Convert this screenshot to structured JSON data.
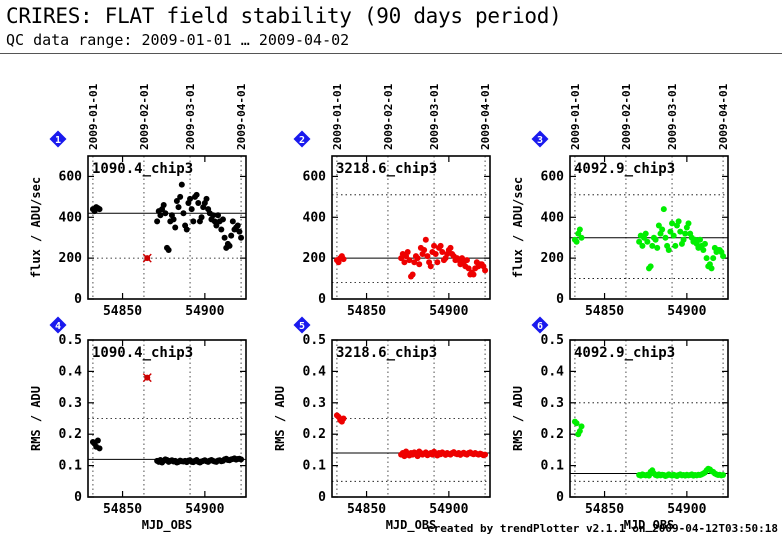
{
  "header": {
    "title": "CRIRES: FLAT field stability (90 days period)",
    "subtitle": "QC data range: 2009-01-01 … 2009-04-02",
    "credit": "created by trendPlotter v2.1.1 on 2009-04-12T03:50:18"
  },
  "colors": {
    "chip_1090": "#000000",
    "chip_3218": "#ee0000",
    "chip_4092": "#00ee00",
    "outlier_marker": "#cc0000",
    "panel_badge": "#1a1aee"
  },
  "chart_data": [
    {
      "type": "scatter",
      "panel": "1",
      "label": "1090.4_chip3",
      "color": "#000000",
      "xlabel": "",
      "ylabel": "flux / ADU/sec",
      "xlim": [
        54829,
        54925
      ],
      "ylim": [
        0,
        700
      ],
      "xticks": [
        54850,
        54900
      ],
      "yticks": [
        0,
        200,
        400,
        600
      ],
      "top_ticks": [
        "2009-01-01",
        "2009-02-01",
        "2009-03-01",
        "2009-04-01"
      ],
      "top_tick_mjd": [
        54832,
        54863,
        54891,
        54922
      ],
      "reference_line": 420,
      "limit_lines": [
        200
      ],
      "outliers": [
        {
          "x": 54865,
          "y": 200
        }
      ],
      "x": [
        54832,
        54833,
        54834,
        54835,
        54836,
        54871,
        54872,
        54873,
        54874,
        54875,
        54876,
        54877,
        54878,
        54879,
        54880,
        54881,
        54882,
        54883,
        54884,
        54885,
        54886,
        54887,
        54888,
        54889,
        54890,
        54891,
        54892,
        54893,
        54894,
        54895,
        54896,
        54897,
        54898,
        54899,
        54900,
        54901,
        54902,
        54903,
        54904,
        54905,
        54906,
        54907,
        54908,
        54909,
        54910,
        54911,
        54912,
        54913,
        54914,
        54915,
        54916,
        54917,
        54918,
        54919,
        54920,
        54921,
        54922
      ],
      "y": [
        440,
        430,
        450,
        445,
        440,
        380,
        430,
        410,
        440,
        460,
        420,
        250,
        240,
        380,
        410,
        390,
        350,
        480,
        450,
        500,
        560,
        420,
        360,
        340,
        470,
        490,
        440,
        380,
        500,
        510,
        470,
        380,
        400,
        450,
        470,
        490,
        440,
        420,
        390,
        410,
        380,
        360,
        410,
        380,
        340,
        390,
        300,
        250,
        270,
        260,
        310,
        380,
        340,
        350,
        360,
        330,
        300
      ]
    },
    {
      "type": "scatter",
      "panel": "2",
      "label": "3218.6_chip3",
      "color": "#ee0000",
      "xlabel": "",
      "ylabel": "",
      "xlim": [
        54829,
        54925
      ],
      "ylim": [
        0,
        700
      ],
      "xticks": [
        54850,
        54900
      ],
      "yticks": [
        0,
        200,
        400,
        600
      ],
      "top_ticks": [
        "2009-01-01",
        "2009-02-01",
        "2009-03-01",
        "2009-04-01"
      ],
      "top_tick_mjd": [
        54832,
        54863,
        54891,
        54922
      ],
      "reference_line": 200,
      "limit_lines": [
        80,
        510
      ],
      "outliers": [],
      "x": [
        54832,
        54833,
        54834,
        54835,
        54836,
        54871,
        54872,
        54873,
        54874,
        54875,
        54876,
        54877,
        54878,
        54879,
        54880,
        54881,
        54882,
        54883,
        54884,
        54885,
        54886,
        54887,
        54888,
        54889,
        54890,
        54891,
        54892,
        54893,
        54894,
        54895,
        54896,
        54897,
        54898,
        54899,
        54900,
        54901,
        54902,
        54903,
        54904,
        54905,
        54906,
        54907,
        54908,
        54909,
        54910,
        54911,
        54912,
        54913,
        54914,
        54915,
        54916,
        54917,
        54918,
        54919,
        54920,
        54921,
        54922
      ],
      "y": [
        190,
        180,
        200,
        210,
        195,
        200,
        220,
        180,
        210,
        230,
        190,
        110,
        120,
        180,
        210,
        200,
        170,
        250,
        220,
        240,
        290,
        210,
        180,
        160,
        230,
        260,
        220,
        180,
        250,
        260,
        230,
        190,
        200,
        220,
        240,
        250,
        220,
        210,
        190,
        200,
        190,
        170,
        200,
        180,
        160,
        190,
        150,
        120,
        130,
        120,
        150,
        180,
        160,
        170,
        170,
        160,
        140
      ]
    },
    {
      "type": "scatter",
      "panel": "3",
      "label": "4092.9_chip3",
      "color": "#00ee00",
      "xlabel": "",
      "ylabel": "flux / ADU/sec",
      "xlim": [
        54829,
        54925
      ],
      "ylim": [
        0,
        700
      ],
      "xticks": [
        54850,
        54900
      ],
      "yticks": [
        0,
        200,
        400,
        600
      ],
      "top_ticks": [
        "2009-01-01",
        "2009-02-01",
        "2009-03-01",
        "2009-04-01"
      ],
      "top_tick_mjd": [
        54832,
        54863,
        54891,
        54922
      ],
      "reference_line": 300,
      "limit_lines": [
        100,
        510
      ],
      "outliers": [],
      "x": [
        54832,
        54833,
        54834,
        54835,
        54836,
        54871,
        54872,
        54873,
        54874,
        54875,
        54876,
        54877,
        54878,
        54879,
        54880,
        54881,
        54882,
        54883,
        54884,
        54885,
        54886,
        54887,
        54888,
        54889,
        54890,
        54891,
        54892,
        54893,
        54894,
        54895,
        54896,
        54897,
        54898,
        54899,
        54900,
        54901,
        54902,
        54903,
        54904,
        54905,
        54906,
        54907,
        54908,
        54909,
        54910,
        54911,
        54912,
        54913,
        54914,
        54915,
        54916,
        54917,
        54918,
        54919,
        54920,
        54921,
        54922
      ],
      "y": [
        290,
        280,
        320,
        340,
        300,
        280,
        310,
        260,
        300,
        320,
        280,
        150,
        160,
        260,
        300,
        290,
        250,
        360,
        320,
        340,
        440,
        300,
        260,
        240,
        330,
        370,
        310,
        260,
        360,
        380,
        330,
        270,
        290,
        320,
        350,
        370,
        320,
        300,
        280,
        290,
        270,
        250,
        290,
        260,
        240,
        270,
        200,
        160,
        170,
        150,
        200,
        250,
        230,
        240,
        240,
        230,
        210
      ]
    },
    {
      "type": "scatter",
      "panel": "4",
      "label": "1090.4_chip3",
      "color": "#000000",
      "xlabel": "MJD_OBS",
      "ylabel": "RMS / ADU",
      "xlim": [
        54829,
        54925
      ],
      "ylim": [
        0,
        0.5
      ],
      "xticks": [
        54850,
        54900
      ],
      "yticks": [
        0,
        0.1,
        0.2,
        0.3,
        0.4,
        0.5
      ],
      "top_ticks": [],
      "top_tick_mjd": [],
      "reference_line": 0.12,
      "limit_lines": [
        0.25
      ],
      "outliers": [
        {
          "x": 54865,
          "y": 0.38
        }
      ],
      "x": [
        54832,
        54833,
        54834,
        54835,
        54836,
        54871,
        54872,
        54873,
        54874,
        54875,
        54876,
        54877,
        54878,
        54879,
        54880,
        54881,
        54882,
        54883,
        54884,
        54885,
        54886,
        54887,
        54888,
        54889,
        54890,
        54891,
        54892,
        54893,
        54894,
        54895,
        54896,
        54897,
        54898,
        54899,
        54900,
        54901,
        54902,
        54903,
        54904,
        54905,
        54906,
        54907,
        54908,
        54909,
        54910,
        54911,
        54912,
        54913,
        54914,
        54915,
        54916,
        54917,
        54918,
        54919,
        54920,
        54921,
        54922
      ],
      "y": [
        0.175,
        0.17,
        0.16,
        0.18,
        0.155,
        0.115,
        0.112,
        0.118,
        0.11,
        0.115,
        0.12,
        0.118,
        0.112,
        0.115,
        0.117,
        0.113,
        0.115,
        0.11,
        0.112,
        0.116,
        0.114,
        0.113,
        0.115,
        0.111,
        0.116,
        0.117,
        0.112,
        0.111,
        0.115,
        0.118,
        0.112,
        0.11,
        0.113,
        0.115,
        0.117,
        0.114,
        0.112,
        0.116,
        0.118,
        0.115,
        0.113,
        0.112,
        0.116,
        0.117,
        0.114,
        0.115,
        0.12,
        0.122,
        0.118,
        0.117,
        0.12,
        0.121,
        0.123,
        0.119,
        0.121,
        0.122,
        0.12
      ]
    },
    {
      "type": "scatter",
      "panel": "5",
      "label": "3218.6_chip3",
      "color": "#ee0000",
      "xlabel": "MJD_OBS",
      "ylabel": "RMS / ADU",
      "xlim": [
        54829,
        54925
      ],
      "ylim": [
        0,
        0.5
      ],
      "xticks": [
        54850,
        54900
      ],
      "yticks": [
        0,
        0.1,
        0.2,
        0.3,
        0.4,
        0.5
      ],
      "top_ticks": [],
      "top_tick_mjd": [],
      "reference_line": 0.14,
      "limit_lines": [
        0.05,
        0.25
      ],
      "outliers": [],
      "x": [
        54832,
        54833,
        54834,
        54835,
        54836,
        54871,
        54872,
        54873,
        54874,
        54875,
        54876,
        54877,
        54878,
        54879,
        54880,
        54881,
        54882,
        54883,
        54884,
        54885,
        54886,
        54887,
        54888,
        54889,
        54890,
        54891,
        54892,
        54893,
        54894,
        54895,
        54896,
        54897,
        54898,
        54899,
        54900,
        54901,
        54902,
        54903,
        54904,
        54905,
        54906,
        54907,
        54908,
        54909,
        54910,
        54911,
        54912,
        54913,
        54914,
        54915,
        54916,
        54917,
        54918,
        54919,
        54920,
        54921,
        54922
      ],
      "y": [
        0.26,
        0.255,
        0.245,
        0.24,
        0.25,
        0.135,
        0.14,
        0.13,
        0.145,
        0.138,
        0.132,
        0.14,
        0.135,
        0.142,
        0.138,
        0.13,
        0.145,
        0.14,
        0.135,
        0.138,
        0.142,
        0.133,
        0.137,
        0.14,
        0.135,
        0.144,
        0.138,
        0.132,
        0.14,
        0.136,
        0.142,
        0.138,
        0.134,
        0.14,
        0.137,
        0.135,
        0.14,
        0.143,
        0.138,
        0.136,
        0.14,
        0.134,
        0.138,
        0.141,
        0.137,
        0.135,
        0.14,
        0.142,
        0.138,
        0.136,
        0.14,
        0.137,
        0.135,
        0.138,
        0.136,
        0.133,
        0.135
      ]
    },
    {
      "type": "scatter",
      "panel": "6",
      "label": "4092.9_chip3",
      "color": "#00ee00",
      "xlabel": "MJD_OBS",
      "ylabel": "RMS / ADU",
      "xlim": [
        54829,
        54925
      ],
      "ylim": [
        0,
        0.5
      ],
      "xticks": [
        54850,
        54900
      ],
      "yticks": [
        0,
        0.1,
        0.2,
        0.3,
        0.4,
        0.5
      ],
      "top_ticks": [],
      "top_tick_mjd": [],
      "reference_line": 0.075,
      "limit_lines": [
        0.05,
        0.3
      ],
      "outliers": [],
      "x": [
        54832,
        54833,
        54834,
        54835,
        54836,
        54871,
        54872,
        54873,
        54874,
        54875,
        54876,
        54877,
        54878,
        54879,
        54880,
        54881,
        54882,
        54883,
        54884,
        54885,
        54886,
        54887,
        54888,
        54889,
        54890,
        54891,
        54892,
        54893,
        54894,
        54895,
        54896,
        54897,
        54898,
        54899,
        54900,
        54901,
        54902,
        54903,
        54904,
        54905,
        54906,
        54907,
        54908,
        54909,
        54910,
        54911,
        54912,
        54913,
        54914,
        54915,
        54916,
        54917,
        54918,
        54919,
        54920,
        54921,
        54922
      ],
      "y": [
        0.24,
        0.235,
        0.2,
        0.21,
        0.225,
        0.07,
        0.068,
        0.072,
        0.07,
        0.069,
        0.071,
        0.068,
        0.08,
        0.085,
        0.075,
        0.07,
        0.068,
        0.072,
        0.069,
        0.071,
        0.07,
        0.067,
        0.069,
        0.072,
        0.07,
        0.068,
        0.071,
        0.069,
        0.067,
        0.07,
        0.072,
        0.069,
        0.07,
        0.068,
        0.071,
        0.069,
        0.07,
        0.072,
        0.068,
        0.07,
        0.069,
        0.071,
        0.07,
        0.072,
        0.075,
        0.078,
        0.085,
        0.09,
        0.088,
        0.082,
        0.08,
        0.075,
        0.072,
        0.07,
        0.071,
        0.069,
        0.07
      ]
    }
  ]
}
